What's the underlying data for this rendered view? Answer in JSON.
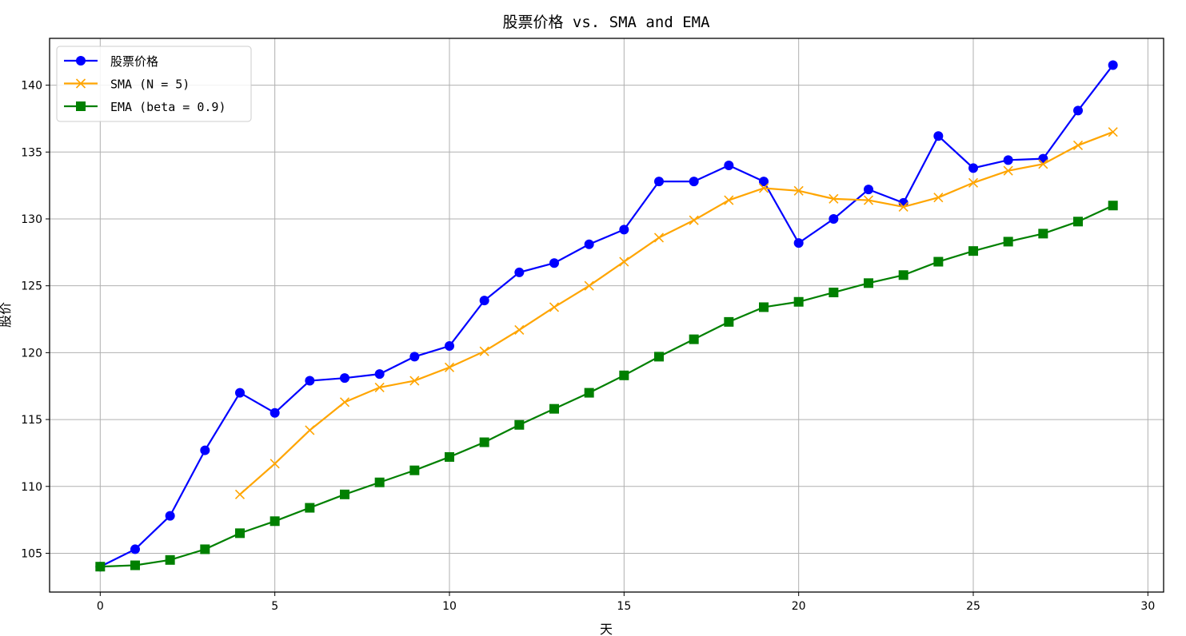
{
  "chart_data": {
    "type": "line",
    "title": "股票价格 vs. SMA and EMA",
    "xlabel": "天",
    "ylabel": "股价",
    "xlim": [
      -1.45,
      30.45
    ],
    "ylim": [
      102.1,
      143.5
    ],
    "xticks": [
      0,
      5,
      10,
      15,
      20,
      25,
      30
    ],
    "yticks": [
      105,
      110,
      115,
      120,
      125,
      130,
      135,
      140
    ],
    "grid": true,
    "legend_position": "top-left",
    "series": [
      {
        "name": "股票价格",
        "color": "#0000ff",
        "marker": "circle",
        "x": [
          0,
          1,
          2,
          3,
          4,
          5,
          6,
          7,
          8,
          9,
          10,
          11,
          12,
          13,
          14,
          15,
          16,
          17,
          18,
          19,
          20,
          21,
          22,
          23,
          24,
          25,
          26,
          27,
          28,
          29
        ],
        "values": [
          104.0,
          105.3,
          107.8,
          112.7,
          117.0,
          115.5,
          117.9,
          118.1,
          118.4,
          119.7,
          120.5,
          123.9,
          126.0,
          126.7,
          128.1,
          129.2,
          132.8,
          132.8,
          134.0,
          132.8,
          128.2,
          130.0,
          132.2,
          131.2,
          136.2,
          133.8,
          134.4,
          134.5,
          138.1,
          141.5
        ]
      },
      {
        "name": "SMA (N = 5)",
        "color": "#ffa500",
        "marker": "x",
        "x": [
          4,
          5,
          6,
          7,
          8,
          9,
          10,
          11,
          12,
          13,
          14,
          15,
          16,
          17,
          18,
          19,
          20,
          21,
          22,
          23,
          24,
          25,
          26,
          27,
          28,
          29
        ],
        "values": [
          109.4,
          111.7,
          114.2,
          116.3,
          117.4,
          117.9,
          118.9,
          120.1,
          121.7,
          123.4,
          125.0,
          126.8,
          128.6,
          129.9,
          131.4,
          132.3,
          132.1,
          131.5,
          131.4,
          130.9,
          131.6,
          132.7,
          133.6,
          134.1,
          135.5,
          136.5
        ]
      },
      {
        "name": "EMA (beta = 0.9)",
        "color": "#008000",
        "marker": "square",
        "x": [
          0,
          1,
          2,
          3,
          4,
          5,
          6,
          7,
          8,
          9,
          10,
          11,
          12,
          13,
          14,
          15,
          16,
          17,
          18,
          19,
          20,
          21,
          22,
          23,
          24,
          25,
          26,
          27,
          28,
          29
        ],
        "values": [
          104.0,
          104.1,
          104.5,
          105.3,
          106.5,
          107.4,
          108.4,
          109.4,
          110.3,
          111.2,
          112.2,
          113.3,
          114.6,
          115.8,
          117.0,
          118.3,
          119.7,
          121.0,
          122.3,
          123.4,
          123.8,
          124.5,
          125.2,
          125.8,
          126.8,
          127.6,
          128.3,
          128.9,
          129.8,
          131.0
        ]
      }
    ]
  }
}
